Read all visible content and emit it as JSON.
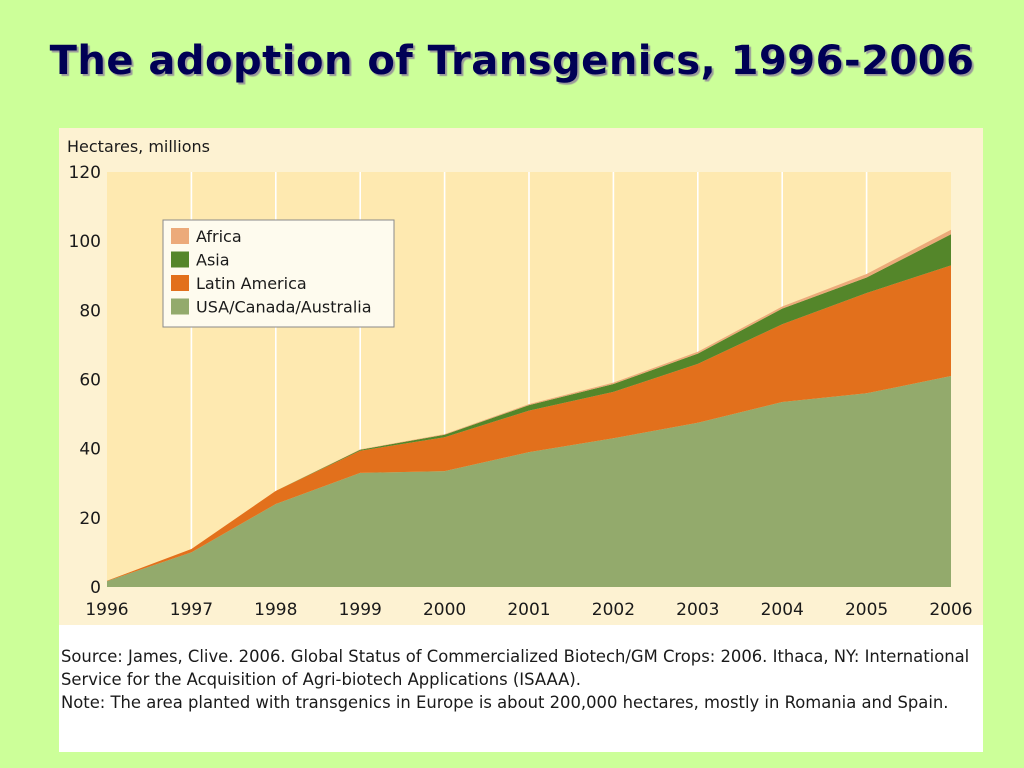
{
  "slide": {
    "title": "The adoption of Transgenics, 1996-2006"
  },
  "colors": {
    "page_background": "#ccff99",
    "chart_background": "#fdf2d2",
    "plot_background": "#fee9b0",
    "title_color": "#000055"
  },
  "chart_data": {
    "type": "area",
    "stacked": true,
    "ylabel": "Hectares, millions",
    "xlabel": "",
    "ylim": [
      0,
      120
    ],
    "y_ticks": [
      0,
      20,
      40,
      60,
      80,
      100,
      120
    ],
    "x": [
      "1996",
      "1997",
      "1998",
      "1999",
      "2000",
      "2001",
      "2002",
      "2003",
      "2004",
      "2005",
      "2006"
    ],
    "grid": "vertical lines at each year",
    "legend_position": "top-left",
    "series": [
      {
        "name": "USA/Canada/Australia",
        "color": "#93aa6c",
        "values": [
          1.7,
          10.0,
          24.0,
          33.0,
          33.5,
          39.0,
          43.0,
          47.5,
          53.5,
          56.0,
          61.0
        ]
      },
      {
        "name": "Latin America",
        "color": "#e2701c",
        "values": [
          0.1,
          1.0,
          3.8,
          6.4,
          9.8,
          12.0,
          13.4,
          17.0,
          22.5,
          29.0,
          32.0
        ]
      },
      {
        "name": "Asia",
        "color": "#54862a",
        "values": [
          0.0,
          0.0,
          0.0,
          0.3,
          0.7,
          1.6,
          2.3,
          3.0,
          4.5,
          4.5,
          9.0
        ]
      },
      {
        "name": "Africa",
        "color": "#ecaa7a",
        "values": [
          0.0,
          0.0,
          0.0,
          0.1,
          0.2,
          0.3,
          0.4,
          0.5,
          0.6,
          1.0,
          1.3
        ]
      }
    ]
  },
  "source_note": {
    "source_line": "Source: James, Clive. 2006. Global Status of Commercialized Biotech/GM Crops: 2006. Ithaca, NY: International Service for the Acquisition of Agri-biotech Applications (ISAAA).",
    "note_line": "Note: The area planted with transgenics in Europe is about 200,000 hectares, mostly in Romania and Spain."
  }
}
